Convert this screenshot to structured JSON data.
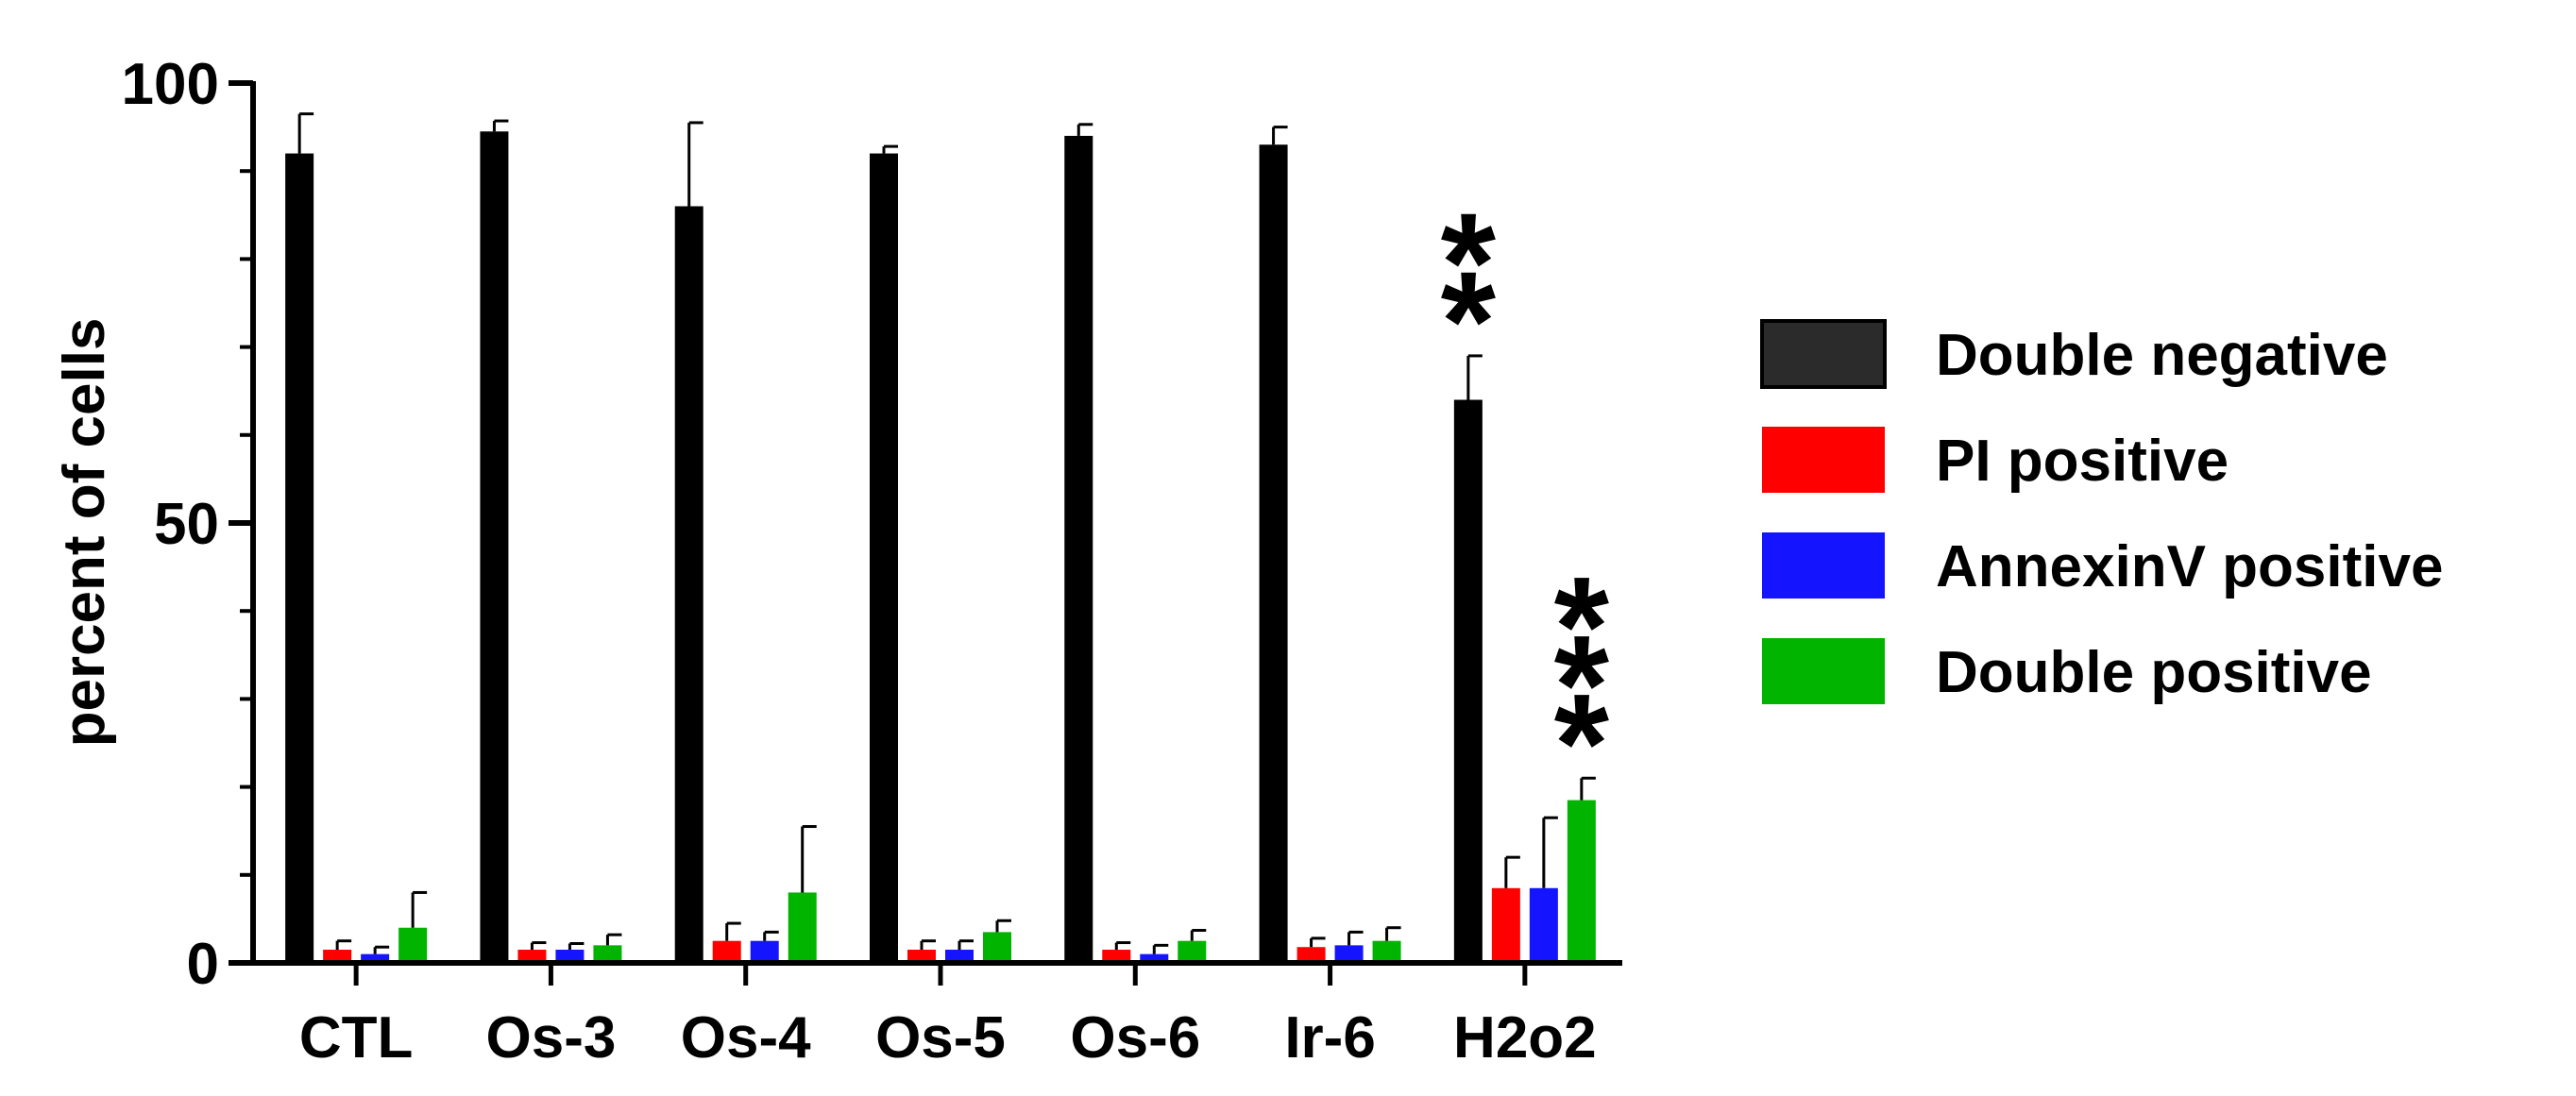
{
  "chart_data": {
    "type": "bar",
    "title": "",
    "xlabel": "",
    "ylabel": "percent of cells",
    "ylim": [
      0,
      100
    ],
    "yticks": [
      0,
      50,
      100
    ],
    "categories": [
      "CTL",
      "Os-3",
      "Os-4",
      "Os-5",
      "Os-6",
      "Ir-6",
      "H2o2"
    ],
    "series": [
      {
        "name": "Double negative",
        "color": "#000000",
        "values": [
          92,
          94.5,
          86,
          92,
          94,
          93,
          64
        ],
        "errors": [
          4.5,
          1.2,
          9.5,
          0.8,
          1.3,
          2.0,
          5.0
        ]
      },
      {
        "name": "PI positive",
        "color": "#ff0000",
        "values": [
          1.5,
          1.5,
          2.5,
          1.5,
          1.5,
          1.8,
          8.5
        ],
        "errors": [
          1.0,
          0.8,
          2.0,
          1.0,
          0.8,
          1.0,
          3.5
        ]
      },
      {
        "name": "AnnexinV positive",
        "color": "#1414ff",
        "values": [
          1.0,
          1.5,
          2.5,
          1.5,
          1.0,
          2.0,
          8.5
        ],
        "errors": [
          0.8,
          0.7,
          1.0,
          1.0,
          1.0,
          1.5,
          8.0
        ]
      },
      {
        "name": "Double positive",
        "color": "#00b400",
        "values": [
          4.0,
          2.0,
          8.0,
          3.5,
          2.5,
          2.5,
          18.5
        ],
        "errors": [
          4.0,
          1.2,
          7.5,
          1.3,
          1.2,
          1.5,
          2.5
        ]
      }
    ],
    "annotations": [
      {
        "category": "H2o2",
        "series": "Double negative",
        "text": "**"
      },
      {
        "category": "H2o2",
        "series": "Double positive",
        "text": "***"
      }
    ],
    "legend": "right",
    "grid": false
  }
}
